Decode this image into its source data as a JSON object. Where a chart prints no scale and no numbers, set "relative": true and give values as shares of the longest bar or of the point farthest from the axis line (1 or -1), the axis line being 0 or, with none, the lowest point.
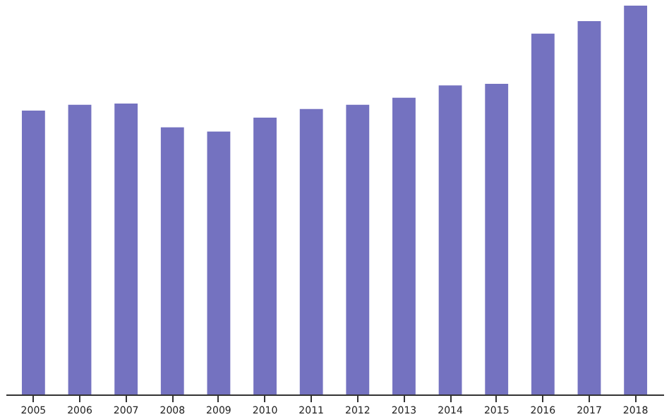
{
  "chart_data": {
    "type": "bar",
    "relative": true,
    "color": "#7472c0",
    "grid": false,
    "categories": [
      "2005",
      "2006",
      "2007",
      "2008",
      "2009",
      "2010",
      "2011",
      "2012",
      "2013",
      "2014",
      "2015",
      "2016",
      "2017",
      "2018"
    ],
    "values": [
      0.73,
      0.745,
      0.748,
      0.687,
      0.676,
      0.712,
      0.734,
      0.745,
      0.763,
      0.795,
      0.799,
      0.928,
      0.96,
      1.0
    ]
  }
}
